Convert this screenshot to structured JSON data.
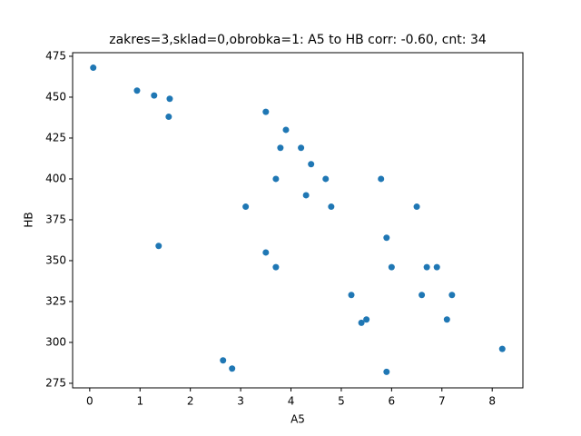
{
  "chart_data": {
    "type": "scatter",
    "title": "zakres=3,sklad=0,obrobka=1: A5 to HB corr: -0.60, cnt: 34",
    "x_label": "A5",
    "y_label": "HB",
    "color": "#1f77b4",
    "x": [
      0.07,
      0.94,
      1.28,
      1.59,
      1.57,
      1.37,
      3.5,
      3.9,
      3.79,
      4.2,
      4.4,
      3.7,
      4.69,
      5.79,
      4.3,
      3.1,
      4.8,
      6.5,
      5.9,
      3.5,
      3.7,
      6.0,
      6.7,
      6.9,
      5.2,
      6.6,
      7.2,
      5.4,
      5.5,
      7.1,
      8.2,
      2.65,
      2.83,
      5.9
    ],
    "values": [
      468,
      454,
      451,
      449,
      438,
      359,
      441,
      430,
      419,
      419,
      409,
      400,
      400,
      400,
      390,
      383,
      383,
      383,
      364,
      355,
      346,
      346,
      346,
      346,
      329,
      329,
      329,
      312,
      314,
      314,
      296,
      289,
      284,
      282
    ],
    "xlim": [
      -0.34,
      8.61
    ],
    "ylim": [
      272.2,
      477.2
    ],
    "xticks": [
      0,
      1,
      2,
      3,
      4,
      5,
      6,
      7,
      8
    ],
    "yticks": [
      275,
      300,
      325,
      350,
      375,
      400,
      425,
      450,
      475
    ]
  }
}
